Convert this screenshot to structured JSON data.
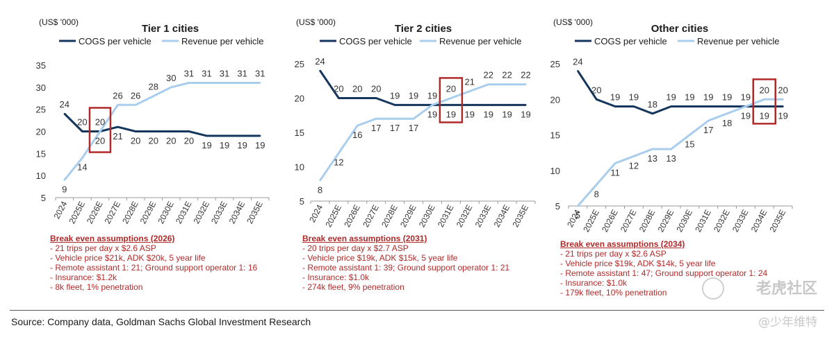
{
  "chart_data": [
    {
      "type": "line",
      "title": "Tier 1 cities",
      "unit_label": "(US$ '000)",
      "categories": [
        "2024",
        "2025E",
        "2026E",
        "2027E",
        "2028E",
        "2029E",
        "2030E",
        "2031E",
        "2032E",
        "2033E",
        "2034E",
        "2035E"
      ],
      "series": [
        {
          "name": "COGS per vehicle",
          "color": "#14365d",
          "values": [
            24,
            20,
            20,
            21,
            20,
            20,
            20,
            20,
            19,
            19,
            19,
            19
          ]
        },
        {
          "name": "Revenue per vehicle",
          "color": "#a9cdec",
          "values": [
            9,
            14,
            20,
            26,
            26,
            28,
            30,
            31,
            31,
            31,
            31,
            31
          ]
        }
      ],
      "ylim": [
        5,
        35
      ],
      "yticks": [
        5,
        10,
        15,
        20,
        25,
        30,
        35
      ],
      "breakeven_index": 2,
      "legend": "top",
      "grid": false
    },
    {
      "type": "line",
      "title": "Tier 2 cities",
      "unit_label": "(US$ '000)",
      "categories": [
        "2024",
        "2025E",
        "2026E",
        "2027E",
        "2028E",
        "2029E",
        "2030E",
        "2031E",
        "2032E",
        "2033E",
        "2034E",
        "2035E"
      ],
      "series": [
        {
          "name": "COGS per vehicle",
          "color": "#14365d",
          "values": [
            24,
            20,
            20,
            20,
            19,
            19,
            19,
            19,
            19,
            19,
            19,
            19
          ]
        },
        {
          "name": "Revenue per vehicle",
          "color": "#a9cdec",
          "values": [
            8,
            12,
            16,
            17,
            17,
            17,
            19,
            20,
            21,
            22,
            22,
            22
          ]
        }
      ],
      "ylim": [
        5,
        25
      ],
      "yticks": [
        5,
        10,
        15,
        20,
        25
      ],
      "breakeven_index": 7,
      "legend": "top",
      "grid": false
    },
    {
      "type": "line",
      "title": "Other cities",
      "unit_label": "(US$ '000)",
      "categories": [
        "2024",
        "2025E",
        "2026E",
        "2027E",
        "2028E",
        "2029E",
        "2030E",
        "2031E",
        "2032E",
        "2033E",
        "2034E",
        "2035E"
      ],
      "series": [
        {
          "name": "COGS per vehicle",
          "color": "#14365d",
          "values": [
            24,
            20,
            19,
            19,
            18,
            19,
            19,
            19,
            19,
            19,
            19,
            19
          ]
        },
        {
          "name": "Revenue per vehicle",
          "color": "#a9cdec",
          "values": [
            5,
            8,
            11,
            12,
            13,
            13,
            15,
            17,
            18,
            19,
            20,
            20
          ]
        }
      ],
      "ylim": [
        5,
        25
      ],
      "yticks": [
        5,
        10,
        15,
        20,
        25
      ],
      "breakeven_index": 10,
      "legend": "top",
      "grid": false
    }
  ],
  "assumptions": [
    {
      "heading": "Break even assumptions (2026)",
      "lines": [
        "- 21 trips per day  x $2.6 ASP",
        "- Vehicle price $21k, ADK $20k, 5 year life",
        "- Remote assistant 1: 21; Ground support operator 1: 16",
        "- Insurance: $1.2k",
        "- 8k fleet, 1% penetration"
      ]
    },
    {
      "heading": "Break even assumptions (2031)",
      "lines": [
        "- 20 trips per day  x $2.7 ASP",
        "- Vehicle price $19k, ADK $15k, 5 year life",
        "- Remote assistant 1: 39; Ground support operator 1: 21",
        "- Insurance: $1.0k",
        "- 274k fleet, 9% penetration"
      ]
    },
    {
      "heading": "Break even assumptions (2034)",
      "lines": [
        "- 21 trips per day  x $2.6 ASP",
        "- Vehicle price $19k, ADK $14k, 5 year life",
        "- Remote assistant 1: 47; Ground support operator 1: 24",
        "- Insurance: $1.0k",
        "- 179k fleet, 10% penetration"
      ]
    }
  ],
  "footer": {
    "source": "Source: Company data, Goldman Sachs Global Investment Research"
  },
  "watermark": {
    "line1": "老虎社区",
    "line2": "@少年维特"
  }
}
